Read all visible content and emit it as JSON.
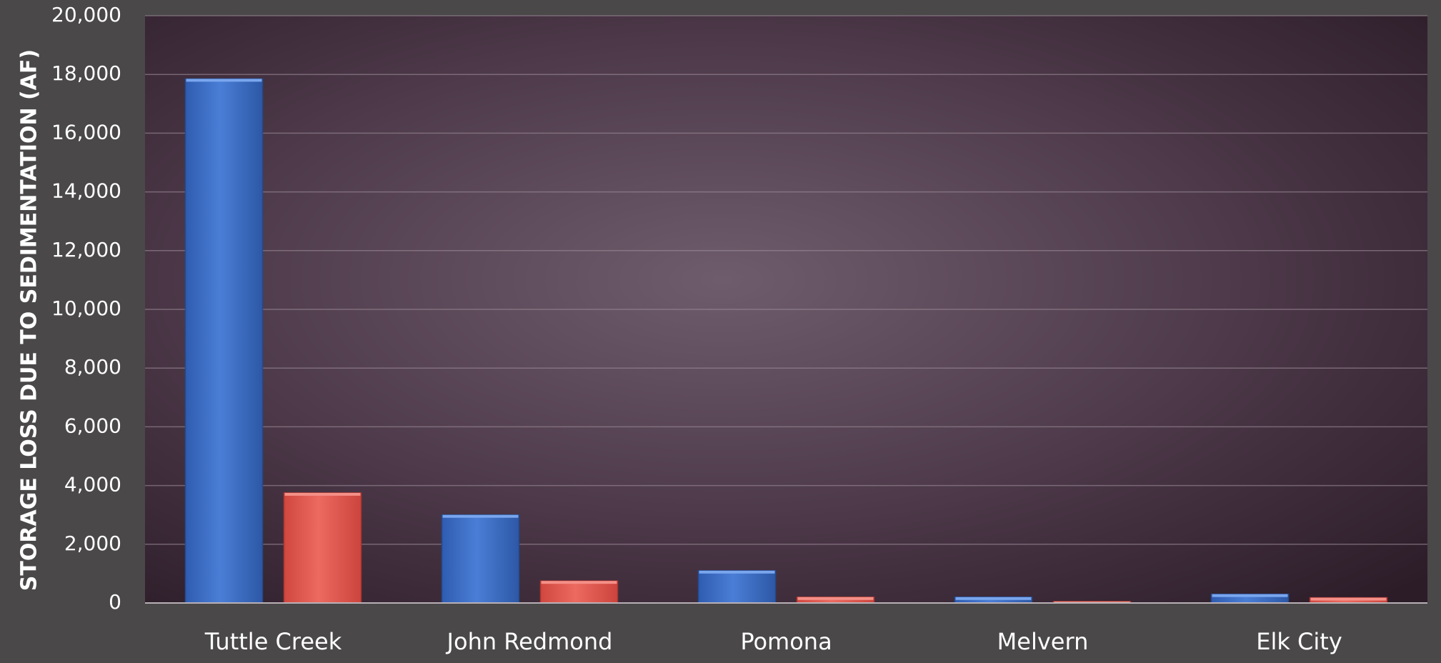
{
  "chart_data": {
    "type": "bar",
    "title": "",
    "xlabel": "",
    "ylabel": "STORAGE LOSS DUE TO SEDIMENTATION (AF)",
    "ylim": [
      0,
      20000
    ],
    "yticks": [
      0,
      2000,
      4000,
      6000,
      8000,
      10000,
      12000,
      14000,
      16000,
      18000,
      20000
    ],
    "ytick_labels": [
      "0",
      "2,000",
      "4,000",
      "6,000",
      "8,000",
      "10,000",
      "12,000",
      "14,000",
      "16,000",
      "18,000",
      "20,000"
    ],
    "categories": [
      "Tuttle Creek",
      "John Redmond",
      "Pomona",
      "Melvern",
      "Elk City"
    ],
    "series": [
      {
        "values": [
          17850,
          3000,
          1100,
          200,
          300
        ],
        "color": "#3f6fc6"
      },
      {
        "values": [
          3750,
          750,
          200,
          50,
          180
        ],
        "color": "#e2554e"
      }
    ],
    "grid": true,
    "legend": "none"
  },
  "colors": {
    "page_background": "#4a4848",
    "plot_background": "#3f2b3b",
    "plot_highlight": "#6a5868",
    "gridline": "#9c8c99",
    "axis_text": "#ffffff"
  }
}
